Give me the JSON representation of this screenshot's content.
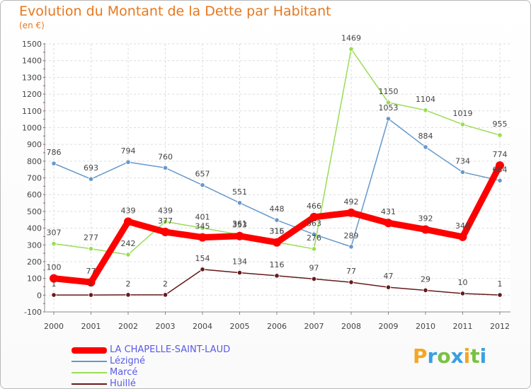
{
  "title": "Evolution du Montant de la Dette par Habitant",
  "unit_label": "(en €)",
  "logo": {
    "text": "Proxiti",
    "colors": [
      "#f5a623",
      "#3aa0e0",
      "#7ac142",
      "#3aa0e0",
      "#f5a623",
      "#7ac142",
      "#3aa0e0"
    ]
  },
  "chart_data": {
    "type": "line",
    "title": "Evolution du Montant de la Dette par Habitant",
    "ylabel": "(en €)",
    "xlabel": "",
    "ylim": [
      -100,
      1500
    ],
    "yticks": [
      -100,
      0,
      100,
      200,
      300,
      400,
      500,
      600,
      700,
      800,
      900,
      1000,
      1100,
      1200,
      1300,
      1400,
      1500
    ],
    "categories": [
      "2000",
      "2001",
      "2002",
      "2003",
      "2004",
      "2005",
      "2006",
      "2007",
      "2008",
      "2009",
      "2010",
      "2011",
      "2012"
    ],
    "grid": true,
    "legend_position": "bottom-left",
    "series": [
      {
        "name": "LA CHAPELLE-SAINT-LAUD",
        "color": "#ff0000",
        "values": [
          100,
          77,
          439,
          377,
          345,
          353,
          315,
          466,
          492,
          431,
          392,
          348,
          774
        ]
      },
      {
        "name": "Lézigné",
        "color": "#6699cc",
        "values": [
          786,
          693,
          794,
          760,
          657,
          551,
          448,
          363,
          289,
          1053,
          884,
          734,
          684
        ]
      },
      {
        "name": "Marcé",
        "color": "#99dd55",
        "values": [
          307,
          277,
          242,
          439,
          401,
          361,
          316,
          276,
          1469,
          1150,
          1104,
          1019,
          955
        ]
      },
      {
        "name": "Huillé",
        "color": "#661a1a",
        "values": [
          1,
          1,
          2,
          2,
          154,
          134,
          116,
          97,
          77,
          47,
          29,
          10,
          1
        ]
      }
    ]
  }
}
